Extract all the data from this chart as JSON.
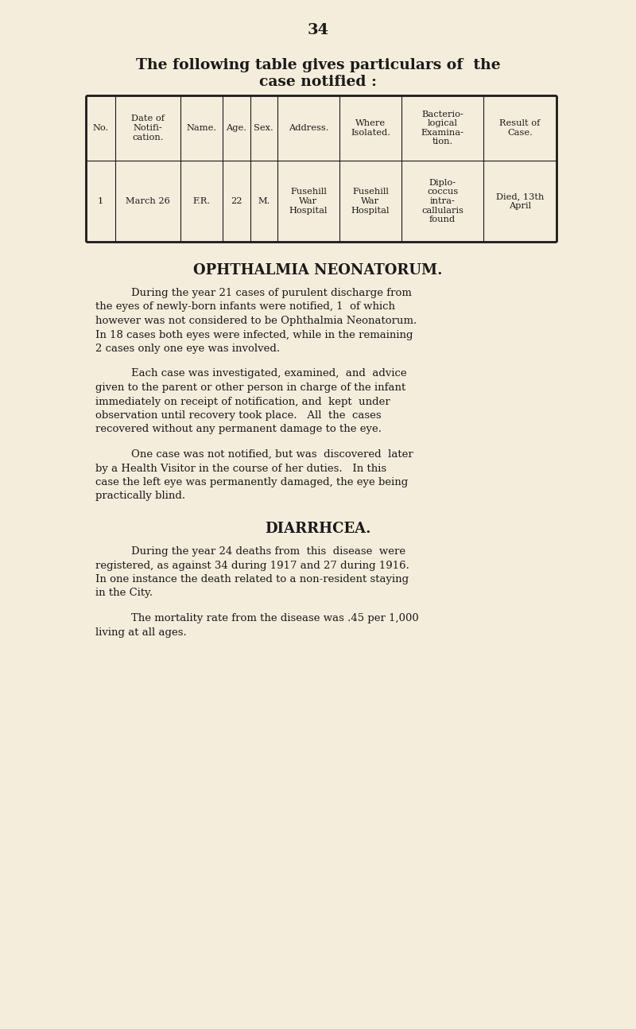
{
  "bg_color": "#f5eddc",
  "page_number": "34",
  "title_line1": "The following table gives particulars of  the",
  "title_line2": "case notified :",
  "table_headers": [
    "No.",
    "Date of\nNotifi-\ncation.",
    "Name.",
    "Age.",
    "Sex.",
    "Address.",
    "Where\nIsolated.",
    "Bacterio-\nlogical\nExamina-\ntion.",
    "Result of\nCase."
  ],
  "table_row": [
    "1",
    "March 26",
    "F.R.",
    "22",
    "M.",
    "Fusehill\nWar\nHospital",
    "Fusehill\nWar\nHospital",
    "Diplo-\ncoccus\nintra-\ncallularis\nfound",
    "Died, 13th\nApril"
  ],
  "section1_title": "OPHTHALMIA NEONATORUM.",
  "section1_para1": "During the year 21 cases of purulent discharge from\nthe eyes of newly-born infants were notified, 1  of which\nhowever was not considered to be Ophthalmia Neonatorum.\nIn 18 cases both eyes were infected, while in the remaining\n2 cases only one eye was involved.",
  "section1_para2": "Each case was investigated, examined,  and  advice\ngiven to the parent or other person in charge of the infant\nimmediately on receipt of notification, and  kept  under\nobservation until recovery took place.   All  the  cases\nrecovered without any permanent damage to the eye.",
  "section1_para3": "One case was not notified, but was  discovered  later\nby a Health Visitor in the course of her duties.   In this\ncase the left eye was permanently damaged, the eye being\npractically blind.",
  "section2_title": "DIARRHCEA.",
  "section2_para1": "During the year 24 deaths from  this  disease  were\nregistered, as against 34 during 1917 and 27 during 1916.\nIn one instance the death related to a non-resident staying\nin the City.",
  "section2_para2": "The mortality rate from the disease was .45 per 1,000\nliving at all ages.",
  "text_color": "#1a1a1a",
  "table_line_color": "#1a1a1a"
}
